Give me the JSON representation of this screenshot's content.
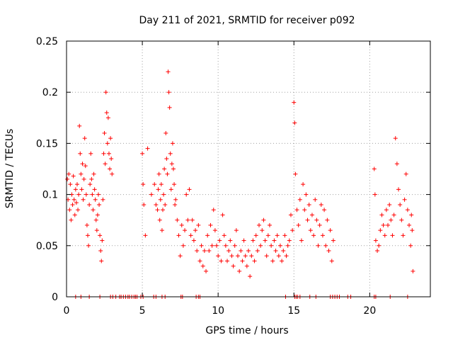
{
  "chart_data": {
    "type": "scatter",
    "title": "Day 211 of 2021, SRMTID for receiver p092",
    "xlabel": "GPS time / hours",
    "ylabel": "SRMTID / TECUs",
    "xlim": [
      0,
      24
    ],
    "ylim": [
      0,
      0.25
    ],
    "xticks": [
      0,
      5,
      10,
      15,
      20
    ],
    "xtick_labels": [
      "0",
      "5",
      "10",
      "15",
      "20"
    ],
    "yticks": [
      0,
      0.05,
      0.1,
      0.15,
      0.2,
      0.25
    ],
    "ytick_labels": [
      "0",
      "0.05",
      "0.1",
      "0.15",
      "0.2",
      "0.25"
    ],
    "grid": true,
    "marker": "+",
    "color": "#ff0000",
    "series": [
      {
        "name": "SRMTID",
        "points": [
          [
            0.05,
            0.115
          ],
          [
            0.1,
            0.095
          ],
          [
            0.15,
            0.12
          ],
          [
            0.2,
            0.085
          ],
          [
            0.25,
            0.11
          ],
          [
            0.3,
            0.075
          ],
          [
            0.35,
            0.1
          ],
          [
            0.4,
            0.09
          ],
          [
            0.45,
            0.118
          ],
          [
            0.5,
            0.095
          ],
          [
            0.55,
            0.08
          ],
          [
            0.6,
            0.105
          ],
          [
            0.65,
            0.092
          ],
          [
            0.7,
            0.11
          ],
          [
            0.75,
            0.085
          ],
          [
            0.8,
            0.1
          ],
          [
            0.85,
            0.167
          ],
          [
            0.9,
            0.14
          ],
          [
            0.95,
            0.12
          ],
          [
            1.0,
            0.105
          ],
          [
            1.05,
            0.13
          ],
          [
            1.1,
            0.095
          ],
          [
            1.15,
            0.115
          ],
          [
            1.2,
            0.155
          ],
          [
            1.25,
            0.128
          ],
          [
            1.3,
            0.1
          ],
          [
            1.35,
            0.07
          ],
          [
            1.4,
            0.06
          ],
          [
            1.45,
            0.05
          ],
          [
            1.5,
            0.09
          ],
          [
            1.55,
            0.11
          ],
          [
            1.6,
            0.14
          ],
          [
            1.65,
            0.115
          ],
          [
            1.7,
            0.1
          ],
          [
            1.75,
            0.085
          ],
          [
            1.8,
            0.12
          ],
          [
            1.85,
            0.105
          ],
          [
            1.9,
            0.095
          ],
          [
            1.95,
            0.075
          ],
          [
            2.0,
            0.065
          ],
          [
            2.05,
            0.08
          ],
          [
            2.1,
            0.1
          ],
          [
            2.15,
            0.09
          ],
          [
            2.2,
            0.06
          ],
          [
            2.25,
            0.045
          ],
          [
            2.3,
            0.035
          ],
          [
            2.35,
            0.055
          ],
          [
            2.4,
            0.095
          ],
          [
            2.45,
            0.14
          ],
          [
            2.5,
            0.16
          ],
          [
            2.55,
            0.13
          ],
          [
            2.6,
            0.2
          ],
          [
            2.65,
            0.18
          ],
          [
            2.7,
            0.15
          ],
          [
            2.75,
            0.175
          ],
          [
            2.8,
            0.14
          ],
          [
            2.85,
            0.125
          ],
          [
            2.9,
            0.155
          ],
          [
            2.95,
            0.135
          ],
          [
            3.0,
            0.12
          ],
          [
            5.0,
            0.14
          ],
          [
            5.05,
            0.11
          ],
          [
            5.1,
            0.09
          ],
          [
            5.2,
            0.06
          ],
          [
            5.35,
            0.145
          ],
          [
            5.6,
            0.1
          ],
          [
            5.8,
            0.11
          ],
          [
            5.9,
            0.09
          ],
          [
            6.0,
            0.085
          ],
          [
            6.05,
            0.105
          ],
          [
            6.1,
            0.12
          ],
          [
            6.15,
            0.075
          ],
          [
            6.2,
            0.095
          ],
          [
            6.25,
            0.11
          ],
          [
            6.3,
            0.065
          ],
          [
            6.35,
            0.085
          ],
          [
            6.4,
            0.1
          ],
          [
            6.45,
            0.125
          ],
          [
            6.5,
            0.09
          ],
          [
            6.55,
            0.16
          ],
          [
            6.6,
            0.135
          ],
          [
            6.65,
            0.12
          ],
          [
            6.7,
            0.22
          ],
          [
            6.75,
            0.2
          ],
          [
            6.8,
            0.185
          ],
          [
            6.85,
            0.14
          ],
          [
            6.9,
            0.105
          ],
          [
            6.95,
            0.13
          ],
          [
            7.0,
            0.15
          ],
          [
            7.05,
            0.125
          ],
          [
            7.1,
            0.11
          ],
          [
            7.15,
            0.09
          ],
          [
            7.2,
            0.095
          ],
          [
            7.3,
            0.075
          ],
          [
            7.4,
            0.06
          ],
          [
            7.5,
            0.04
          ],
          [
            7.6,
            0.07
          ],
          [
            7.7,
            0.05
          ],
          [
            7.8,
            0.065
          ],
          [
            7.9,
            0.1
          ],
          [
            8.0,
            0.075
          ],
          [
            8.1,
            0.105
          ],
          [
            8.2,
            0.06
          ],
          [
            8.3,
            0.075
          ],
          [
            8.4,
            0.055
          ],
          [
            8.5,
            0.065
          ],
          [
            8.6,
            0.045
          ],
          [
            8.7,
            0.07
          ],
          [
            8.8,
            0.035
          ],
          [
            8.9,
            0.05
          ],
          [
            9.0,
            0.03
          ],
          [
            9.1,
            0.045
          ],
          [
            9.2,
            0.025
          ],
          [
            9.3,
            0.06
          ],
          [
            9.4,
            0.045
          ],
          [
            9.5,
            0.07
          ],
          [
            9.6,
            0.05
          ],
          [
            9.7,
            0.085
          ],
          [
            9.8,
            0.065
          ],
          [
            9.9,
            0.05
          ],
          [
            10.0,
            0.04
          ],
          [
            10.1,
            0.055
          ],
          [
            10.2,
            0.035
          ],
          [
            10.3,
            0.08
          ],
          [
            10.4,
            0.06
          ],
          [
            10.5,
            0.05
          ],
          [
            10.6,
            0.035
          ],
          [
            10.7,
            0.045
          ],
          [
            10.8,
            0.055
          ],
          [
            10.9,
            0.04
          ],
          [
            11.0,
            0.03
          ],
          [
            11.1,
            0.05
          ],
          [
            11.2,
            0.065
          ],
          [
            11.3,
            0.04
          ],
          [
            11.4,
            0.025
          ],
          [
            11.5,
            0.045
          ],
          [
            11.6,
            0.035
          ],
          [
            11.7,
            0.055
          ],
          [
            11.8,
            0.04
          ],
          [
            11.9,
            0.03
          ],
          [
            12.0,
            0.045
          ],
          [
            12.1,
            0.02
          ],
          [
            12.2,
            0.04
          ],
          [
            12.3,
            0.055
          ],
          [
            12.4,
            0.035
          ],
          [
            12.5,
            0.06
          ],
          [
            12.6,
            0.045
          ],
          [
            12.7,
            0.07
          ],
          [
            12.8,
            0.05
          ],
          [
            12.9,
            0.065
          ],
          [
            13.0,
            0.075
          ],
          [
            13.1,
            0.055
          ],
          [
            13.2,
            0.04
          ],
          [
            13.3,
            0.06
          ],
          [
            13.4,
            0.07
          ],
          [
            13.5,
            0.05
          ],
          [
            13.6,
            0.035
          ],
          [
            13.7,
            0.055
          ],
          [
            13.8,
            0.045
          ],
          [
            13.9,
            0.06
          ],
          [
            14.0,
            0.04
          ],
          [
            14.1,
            0.05
          ],
          [
            14.2,
            0.035
          ],
          [
            14.3,
            0.045
          ],
          [
            14.4,
            0.06
          ],
          [
            14.5,
            0.04
          ],
          [
            14.6,
            0.05
          ],
          [
            14.7,
            0.055
          ],
          [
            14.8,
            0.08
          ],
          [
            14.9,
            0.065
          ],
          [
            15.0,
            0.19
          ],
          [
            15.05,
            0.17
          ],
          [
            15.1,
            0.12
          ],
          [
            15.2,
            0.085
          ],
          [
            15.3,
            0.07
          ],
          [
            15.4,
            0.095
          ],
          [
            15.5,
            0.055
          ],
          [
            15.6,
            0.11
          ],
          [
            15.7,
            0.085
          ],
          [
            15.8,
            0.1
          ],
          [
            15.9,
            0.075
          ],
          [
            16.0,
            0.09
          ],
          [
            16.1,
            0.065
          ],
          [
            16.2,
            0.08
          ],
          [
            16.3,
            0.06
          ],
          [
            16.4,
            0.095
          ],
          [
            16.5,
            0.075
          ],
          [
            16.6,
            0.05
          ],
          [
            16.7,
            0.07
          ],
          [
            16.8,
            0.09
          ],
          [
            16.9,
            0.06
          ],
          [
            17.0,
            0.085
          ],
          [
            17.1,
            0.05
          ],
          [
            17.2,
            0.075
          ],
          [
            17.3,
            0.045
          ],
          [
            17.4,
            0.065
          ],
          [
            17.5,
            0.035
          ],
          [
            17.6,
            0.055
          ],
          [
            20.3,
            0.125
          ],
          [
            20.35,
            0.1
          ],
          [
            20.4,
            0.055
          ],
          [
            20.5,
            0.045
          ],
          [
            20.6,
            0.05
          ],
          [
            20.7,
            0.065
          ],
          [
            20.8,
            0.08
          ],
          [
            20.9,
            0.07
          ],
          [
            21.0,
            0.06
          ],
          [
            21.1,
            0.085
          ],
          [
            21.2,
            0.07
          ],
          [
            21.3,
            0.09
          ],
          [
            21.4,
            0.075
          ],
          [
            21.5,
            0.06
          ],
          [
            21.6,
            0.08
          ],
          [
            21.7,
            0.155
          ],
          [
            21.8,
            0.13
          ],
          [
            21.9,
            0.105
          ],
          [
            22.0,
            0.09
          ],
          [
            22.1,
            0.075
          ],
          [
            22.2,
            0.06
          ],
          [
            22.3,
            0.095
          ],
          [
            22.4,
            0.12
          ],
          [
            22.5,
            0.085
          ],
          [
            22.6,
            0.07
          ],
          [
            22.7,
            0.05
          ],
          [
            22.75,
            0.08
          ],
          [
            22.8,
            0.065
          ],
          [
            22.85,
            0.025
          ]
        ]
      }
    ],
    "zero_markers_x": [
      0.6,
      0.95,
      1.5,
      2.2,
      2.9,
      3.05,
      3.25,
      3.5,
      3.6,
      3.75,
      3.9,
      4.05,
      4.15,
      4.3,
      4.45,
      4.55,
      4.65,
      4.9,
      5.05,
      5.75,
      5.9,
      6.3,
      6.5,
      7.55,
      7.65,
      8.55,
      8.7,
      8.8,
      14.45,
      15.05,
      15.15,
      15.25,
      15.4,
      16.05,
      16.45,
      17.4,
      17.55,
      17.7,
      17.85,
      18.0,
      18.55,
      18.75,
      20.3,
      20.4,
      21.35,
      22.5
    ]
  }
}
